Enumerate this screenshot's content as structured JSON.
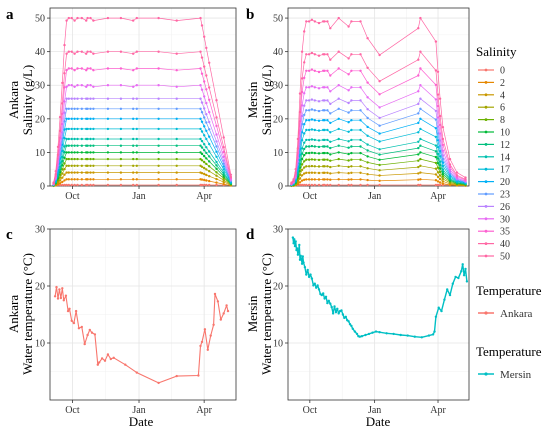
{
  "colors": {
    "ankara": "#F8766D",
    "mersin": "#00BFC4",
    "panel_bg": "#ffffff",
    "grid_major": "#e5e5e5",
    "grid_minor": "#f2f2f2",
    "axis": "#333333",
    "salinity_palette": [
      "#F8766D",
      "#E58700",
      "#C99800",
      "#A3A500",
      "#6BB100",
      "#00BA38",
      "#00BF7D",
      "#00C0AF",
      "#00BCD8",
      "#00B0F6",
      "#619CFF",
      "#B983FF",
      "#E76BF3",
      "#FD61D1",
      "#FF67A4"
    ]
  },
  "chart_data": [
    {
      "id": "a",
      "type": "line",
      "panel_letter": "a",
      "title": "",
      "ylabel_line1": "Ankara",
      "ylabel_line2": "Salinity (g/L)",
      "xlabel": "",
      "y_ticks": [
        0,
        10,
        20,
        30,
        40,
        50
      ],
      "ylim": [
        0,
        53
      ],
      "x_ticks": [
        "Oct",
        "Jan",
        "Apr"
      ],
      "x_tick_days": [
        31,
        123,
        213
      ],
      "xlim_days": [
        0,
        257
      ],
      "x": [
        5,
        8,
        11,
        14,
        17,
        20,
        23,
        26,
        30,
        34,
        38,
        44,
        50,
        52,
        56,
        60,
        80,
        98,
        115,
        120,
        150,
        175,
        208,
        210,
        213,
        216,
        220,
        230,
        240,
        250
      ],
      "shape_plateau_days": [
        22,
        208
      ],
      "legend_title": "Salinity",
      "legend_labels": [
        "0",
        "2",
        "4",
        "6",
        "8",
        "10",
        "12",
        "14",
        "17",
        "20",
        "23",
        "26",
        "30",
        "35",
        "40",
        "50"
      ]
    },
    {
      "id": "b",
      "type": "line",
      "panel_letter": "b",
      "title": "",
      "ylabel_line1": "Mersin",
      "ylabel_line2": "Salinity (g/L)",
      "xlabel": "",
      "y_ticks": [
        0,
        10,
        20,
        30,
        40,
        50
      ],
      "ylim": [
        0,
        53
      ],
      "x_ticks": [
        "Oct",
        "Jan",
        "Apr"
      ],
      "x_tick_days": [
        31,
        123,
        213
      ],
      "xlim_days": [
        0,
        257
      ],
      "x": [
        5,
        8,
        11,
        14,
        17,
        20,
        23,
        26,
        30,
        34,
        38,
        44,
        50,
        52,
        56,
        60,
        72,
        86,
        90,
        103,
        113,
        130,
        185,
        188,
        210,
        213,
        216,
        220,
        230,
        240,
        252
      ],
      "shape_mersin": [
        0.02,
        0.04,
        0.1,
        0.28,
        0.55,
        0.8,
        0.92,
        0.98,
        0.98,
        0.99,
        0.98,
        0.97,
        0.98,
        0.98,
        0.98,
        0.94,
        1.0,
        0.95,
        0.98,
        0.98,
        0.88,
        0.78,
        0.94,
        1.0,
        0.86,
        0.68,
        0.52,
        0.35,
        0.16,
        0.08,
        0.05
      ]
    },
    {
      "id": "c",
      "type": "line",
      "panel_letter": "c",
      "title": "",
      "ylabel_line1": "Ankara",
      "ylabel_line2": "Water temperature (°C)",
      "xlabel": "Date",
      "y_ticks": [
        10,
        20,
        30
      ],
      "ylim": [
        0,
        30
      ],
      "x_ticks": [
        "Oct",
        "Jan",
        "Apr"
      ],
      "x_tick_days": [
        31,
        123,
        213
      ],
      "xlim_days": [
        0,
        257
      ],
      "legend_title": "Temperature",
      "legend_label": "Ankara",
      "x": [
        7,
        9,
        11,
        13,
        15,
        17,
        19,
        22,
        25,
        27,
        30,
        33,
        36,
        40,
        44,
        48,
        52,
        55,
        58,
        62,
        66,
        68,
        72,
        76,
        80,
        84,
        88,
        104,
        120,
        150,
        175,
        205,
        208,
        210,
        214,
        218,
        222,
        226,
        228,
        232,
        236,
        240,
        244,
        246
      ],
      "y": [
        18.2,
        19.8,
        17.8,
        19.4,
        17.9,
        19.6,
        17.5,
        18.3,
        15.6,
        16.0,
        13.9,
        13.5,
        15.6,
        12.6,
        12.8,
        9.8,
        11.4,
        12.3,
        11.8,
        11.5,
        6.2,
        6.6,
        7.3,
        6.9,
        8.0,
        7.2,
        7.4,
        6.2,
        4.8,
        3.0,
        4.2,
        4.3,
        9.5,
        10.2,
        12.4,
        8.8,
        11.3,
        13.2,
        18.6,
        17.3,
        14.1,
        15.2,
        16.6,
        15.6
      ]
    },
    {
      "id": "d",
      "type": "line",
      "panel_letter": "d",
      "title": "",
      "ylabel_line1": "Mersin",
      "ylabel_line2": "Water temperature (°C)",
      "xlabel": "Date",
      "y_ticks": [
        10,
        20,
        30
      ],
      "ylim": [
        0,
        30
      ],
      "x_ticks": [
        "Oct",
        "Jan",
        "Apr"
      ],
      "x_tick_days": [
        31,
        123,
        213
      ],
      "xlim_days": [
        0,
        257
      ],
      "legend_title": "Temperature",
      "legend_label": "Mersin",
      "x": [
        7,
        8,
        9,
        10,
        11,
        12,
        13,
        14,
        15,
        16,
        17,
        18,
        19,
        20,
        21,
        22,
        24,
        26,
        28,
        30,
        32,
        34,
        36,
        38,
        40,
        42,
        44,
        46,
        48,
        50,
        52,
        54,
        56,
        58,
        60,
        62,
        64,
        66,
        68,
        70,
        72,
        74,
        76,
        78,
        80,
        82,
        84,
        86,
        88,
        90,
        92,
        95,
        98,
        100,
        102,
        105,
        110,
        115,
        120,
        125,
        130,
        140,
        150,
        160,
        170,
        180,
        190,
        200,
        206,
        208,
        210,
        214,
        218,
        222,
        226,
        230,
        234,
        238,
        242,
        246,
        248,
        250,
        252,
        254
      ],
      "y": [
        28.5,
        27.5,
        28.2,
        27.0,
        27.8,
        26.3,
        26.6,
        25.5,
        26.1,
        27.2,
        24.6,
        25.3,
        24.7,
        23.9,
        25.2,
        24.1,
        23.3,
        22.0,
        22.8,
        21.6,
        22.0,
        21.3,
        20.1,
        20.4,
        19.7,
        20.1,
        19.4,
        18.6,
        18.4,
        18.7,
        17.8,
        18.1,
        17.0,
        17.4,
        16.9,
        16.3,
        15.2,
        16.4,
        15.4,
        16.0,
        15.2,
        15.6,
        15.7,
        15.0,
        14.4,
        14.6,
        14.0,
        13.8,
        13.3,
        13.0,
        12.5,
        12.0,
        11.6,
        11.2,
        11.1,
        11.2,
        11.4,
        11.6,
        11.8,
        12.0,
        11.9,
        11.7,
        11.6,
        11.4,
        11.3,
        11.1,
        11.0,
        11.3,
        11.5,
        12.0,
        14.6,
        16.2,
        15.6,
        17.6,
        19.4,
        18.4,
        20.4,
        21.6,
        21.4,
        22.6,
        23.8,
        21.9,
        23.0,
        20.8
      ]
    }
  ]
}
